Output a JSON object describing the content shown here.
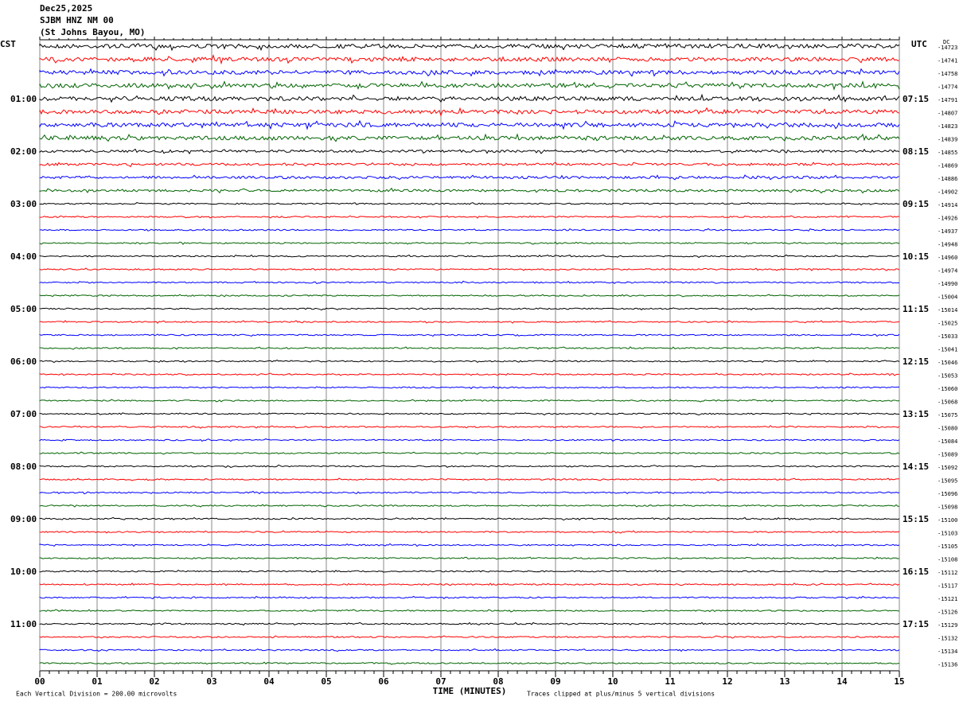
{
  "header": {
    "date": "Dec25,2025",
    "station": "SJBM HNZ NM 00",
    "location": "(St Johns Bayou, MO)"
  },
  "left_title": "CST",
  "right_title": "UTC",
  "dc_title": "DC",
  "left_labels": [
    "01:00",
    "02:00",
    "03:00",
    "04:00",
    "05:00",
    "06:00",
    "07:00",
    "08:00",
    "09:00",
    "10:00",
    "11:00"
  ],
  "right_labels": [
    "07:15",
    "08:15",
    "09:15",
    "10:15",
    "11:15",
    "12:15",
    "13:15",
    "14:15",
    "15:15",
    "16:15",
    "17:15"
  ],
  "dc_offsets": [
    "-14723",
    "-14741",
    "-14758",
    "-14774",
    "-14791",
    "-14807",
    "-14823",
    "-14839",
    "-14855",
    "-14869",
    "-14886",
    "-14902",
    "-14914",
    "-14926",
    "-14937",
    "-14948",
    "-14960",
    "-14974",
    "-14990",
    "-15004",
    "-15014",
    "-15025",
    "-15033",
    "-15041",
    "-15046",
    "-15053",
    "-15060",
    "-15068",
    "-15075",
    "-15080",
    "-15084",
    "-15089",
    "-15092",
    "-15095",
    "-15096",
    "-15098",
    "-15100",
    "-15103",
    "-15105",
    "-15108",
    "-15112",
    "-15117",
    "-15121",
    "-15126",
    "-15129",
    "-15132",
    "-15134",
    "-15136"
  ],
  "trace_colors": [
    "#000000",
    "#ff0000",
    "#0000ff",
    "#006400"
  ],
  "x_axis": {
    "ticks": [
      "00",
      "01",
      "02",
      "03",
      "04",
      "05",
      "06",
      "07",
      "08",
      "09",
      "10",
      "11",
      "12",
      "13",
      "14",
      "15"
    ],
    "label": "TIME (MINUTES)"
  },
  "footer": {
    "scale": "Each Vertical Division =  200.00 microvolts",
    "clip": "Traces clipped at plus/minus 5 vertical divisions"
  }
}
